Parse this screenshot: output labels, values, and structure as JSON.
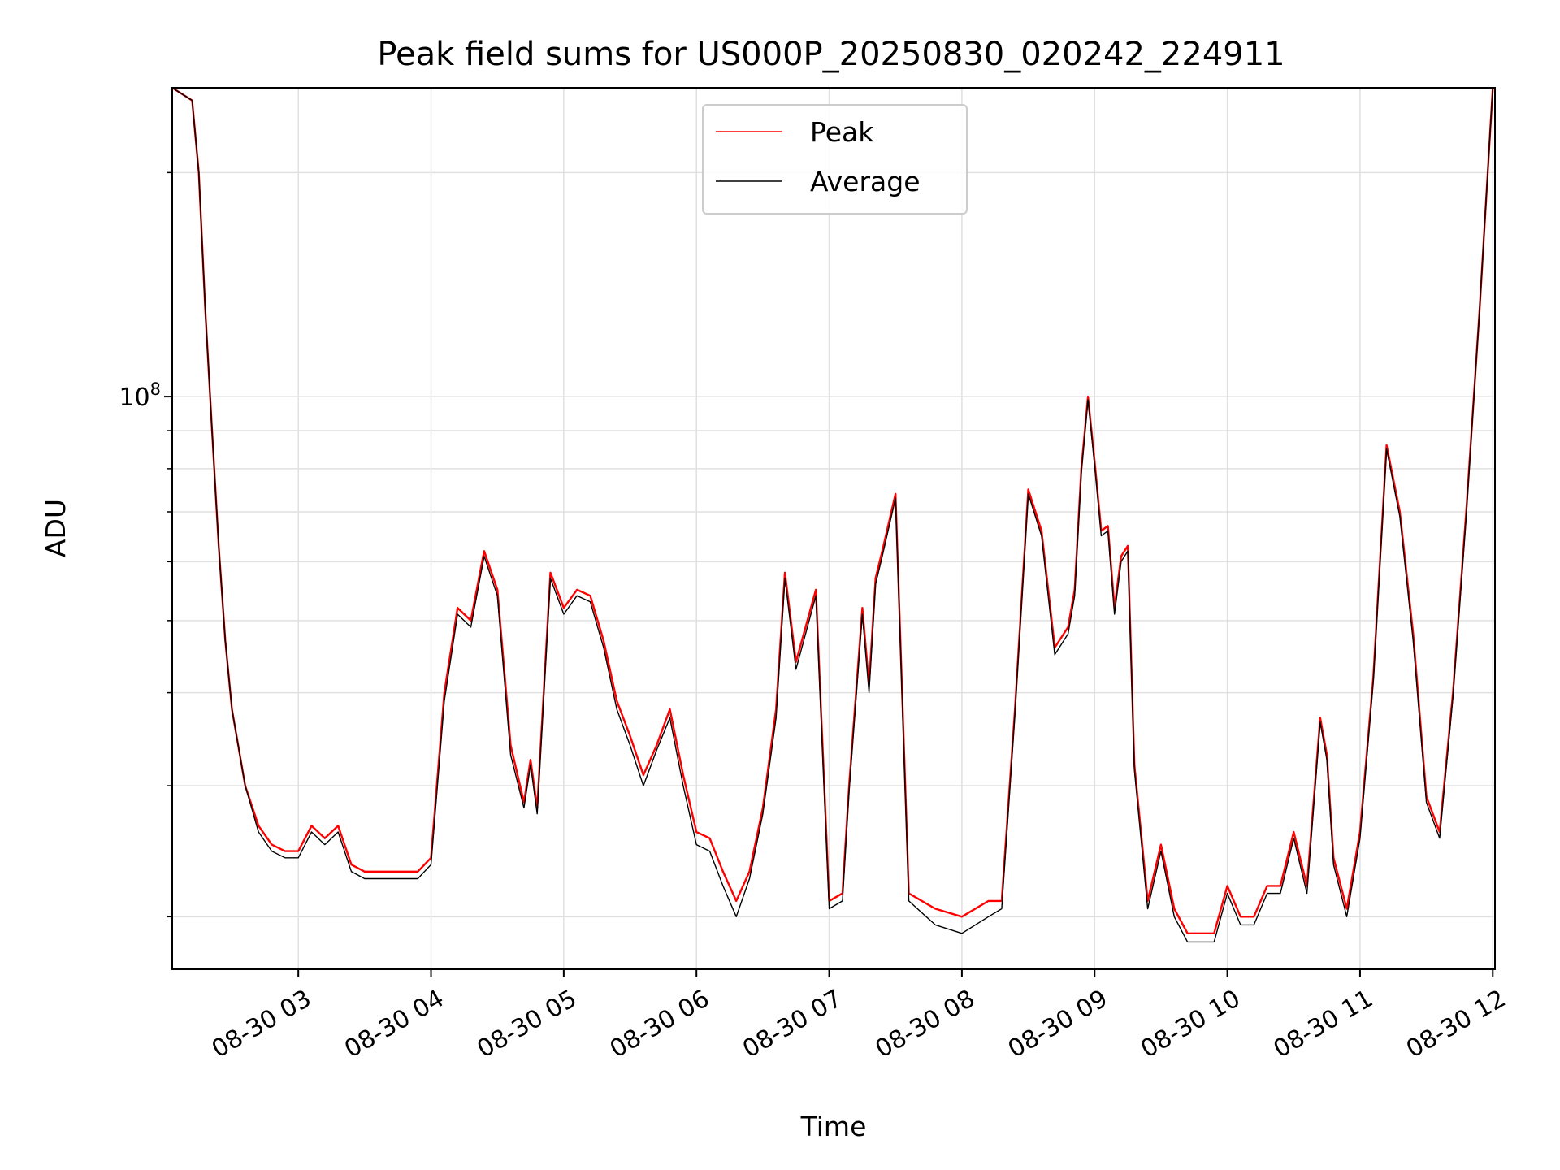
{
  "chart_data": {
    "type": "line",
    "title": "Peak field sums for US000P_20250830_020242_224911",
    "xlabel": "Time",
    "ylabel": "ADU",
    "yscale": "log",
    "grid": true,
    "legend_position": "upper center",
    "xlim": [
      "2025-08-30 02:03",
      "2025-08-30 12:01"
    ],
    "ylim": [
      17000000,
      260000000
    ],
    "x_ticks": [
      "08-30 03",
      "08-30 04",
      "08-30 05",
      "08-30 06",
      "08-30 07",
      "08-30 08",
      "08-30 09",
      "08-30 10",
      "08-30 11",
      "08-30 12"
    ],
    "x_tick_values": [
      "2025-08-30 03:00",
      "2025-08-30 04:00",
      "2025-08-30 05:00",
      "2025-08-30 06:00",
      "2025-08-30 07:00",
      "2025-08-30 08:00",
      "2025-08-30 09:00",
      "2025-08-30 10:00",
      "2025-08-30 11:00",
      "2025-08-30 12:00"
    ],
    "y_tick_label": {
      "mantissa": "10",
      "exponent": "8",
      "value": 100000000
    },
    "y_minor_ticks": [
      20000000,
      30000000,
      40000000,
      50000000,
      60000000,
      70000000,
      80000000,
      90000000,
      200000000
    ],
    "series": [
      {
        "name": "Peak",
        "color": "#ff0000",
        "x": [
          "2025-08-30 02:03",
          "2025-08-30 02:12",
          "2025-08-30 02:15",
          "2025-08-30 02:18",
          "2025-08-30 02:21",
          "2025-08-30 02:24",
          "2025-08-30 02:27",
          "2025-08-30 02:30",
          "2025-08-30 02:36",
          "2025-08-30 02:42",
          "2025-08-30 02:48",
          "2025-08-30 02:54",
          "2025-08-30 03:00",
          "2025-08-30 03:06",
          "2025-08-30 03:12",
          "2025-08-30 03:18",
          "2025-08-30 03:24",
          "2025-08-30 03:30",
          "2025-08-30 03:42",
          "2025-08-30 03:54",
          "2025-08-30 04:00",
          "2025-08-30 04:06",
          "2025-08-30 04:12",
          "2025-08-30 04:18",
          "2025-08-30 04:24",
          "2025-08-30 04:30",
          "2025-08-30 04:36",
          "2025-08-30 04:42",
          "2025-08-30 04:45",
          "2025-08-30 04:48",
          "2025-08-30 04:54",
          "2025-08-30 05:00",
          "2025-08-30 05:06",
          "2025-08-30 05:12",
          "2025-08-30 05:18",
          "2025-08-30 05:24",
          "2025-08-30 05:30",
          "2025-08-30 05:36",
          "2025-08-30 05:42",
          "2025-08-30 05:48",
          "2025-08-30 05:54",
          "2025-08-30 06:00",
          "2025-08-30 06:06",
          "2025-08-30 06:12",
          "2025-08-30 06:18",
          "2025-08-30 06:24",
          "2025-08-30 06:30",
          "2025-08-30 06:36",
          "2025-08-30 06:40",
          "2025-08-30 06:45",
          "2025-08-30 06:54",
          "2025-08-30 07:00",
          "2025-08-30 07:06",
          "2025-08-30 07:09",
          "2025-08-30 07:15",
          "2025-08-30 07:18",
          "2025-08-30 07:21",
          "2025-08-30 07:24",
          "2025-08-30 07:30",
          "2025-08-30 07:36",
          "2025-08-30 07:48",
          "2025-08-30 08:00",
          "2025-08-30 08:12",
          "2025-08-30 08:18",
          "2025-08-30 08:24",
          "2025-08-30 08:30",
          "2025-08-30 08:36",
          "2025-08-30 08:42",
          "2025-08-30 08:48",
          "2025-08-30 08:51",
          "2025-08-30 08:54",
          "2025-08-30 08:57",
          "2025-08-30 09:00",
          "2025-08-30 09:03",
          "2025-08-30 09:06",
          "2025-08-30 09:09",
          "2025-08-30 09:12",
          "2025-08-30 09:15",
          "2025-08-30 09:18",
          "2025-08-30 09:24",
          "2025-08-30 09:30",
          "2025-08-30 09:36",
          "2025-08-30 09:42",
          "2025-08-30 09:48",
          "2025-08-30 09:54",
          "2025-08-30 10:00",
          "2025-08-30 10:06",
          "2025-08-30 10:12",
          "2025-08-30 10:18",
          "2025-08-30 10:24",
          "2025-08-30 10:30",
          "2025-08-30 10:36",
          "2025-08-30 10:42",
          "2025-08-30 10:45",
          "2025-08-30 10:48",
          "2025-08-30 10:54",
          "2025-08-30 11:00",
          "2025-08-30 11:06",
          "2025-08-30 11:12",
          "2025-08-30 11:18",
          "2025-08-30 11:24",
          "2025-08-30 11:30",
          "2025-08-30 11:36",
          "2025-08-30 11:42",
          "2025-08-30 11:48",
          "2025-08-30 11:54",
          "2025-08-30 12:00",
          "2025-08-30 12:01"
        ],
        "y": [
          260000000,
          250000000,
          200000000,
          130000000,
          90000000,
          63000000,
          47000000,
          38000000,
          30000000,
          26500000,
          25000000,
          24500000,
          24500000,
          26500000,
          25500000,
          26500000,
          23500000,
          23000000,
          23000000,
          23000000,
          24000000,
          40000000,
          52000000,
          50000000,
          62000000,
          55000000,
          34000000,
          28500000,
          32500000,
          28000000,
          58000000,
          52000000,
          55000000,
          54000000,
          47000000,
          39000000,
          35000000,
          31000000,
          34000000,
          38000000,
          31000000,
          26000000,
          25500000,
          23000000,
          21000000,
          23000000,
          28000000,
          38000000,
          58000000,
          44000000,
          55000000,
          21000000,
          21500000,
          30000000,
          52000000,
          41000000,
          57000000,
          62000000,
          74000000,
          21500000,
          20500000,
          20000000,
          21000000,
          21000000,
          38000000,
          75000000,
          66000000,
          46000000,
          49000000,
          55000000,
          80000000,
          100000000,
          82000000,
          66000000,
          67000000,
          52000000,
          61000000,
          63000000,
          32000000,
          21000000,
          25000000,
          20500000,
          19000000,
          19000000,
          19000000,
          22000000,
          20000000,
          20000000,
          22000000,
          22000000,
          26000000,
          22000000,
          37000000,
          33000000,
          24000000,
          20500000,
          26000000,
          42000000,
          86000000,
          70000000,
          48000000,
          29000000,
          26000000,
          40000000,
          70000000,
          130000000,
          260000000,
          260000000
        ]
      },
      {
        "name": "Average",
        "color": "#000000",
        "x": [
          "2025-08-30 02:03",
          "2025-08-30 02:12",
          "2025-08-30 02:15",
          "2025-08-30 02:18",
          "2025-08-30 02:21",
          "2025-08-30 02:24",
          "2025-08-30 02:27",
          "2025-08-30 02:30",
          "2025-08-30 02:36",
          "2025-08-30 02:42",
          "2025-08-30 02:48",
          "2025-08-30 02:54",
          "2025-08-30 03:00",
          "2025-08-30 03:06",
          "2025-08-30 03:12",
          "2025-08-30 03:18",
          "2025-08-30 03:24",
          "2025-08-30 03:30",
          "2025-08-30 03:42",
          "2025-08-30 03:54",
          "2025-08-30 04:00",
          "2025-08-30 04:06",
          "2025-08-30 04:12",
          "2025-08-30 04:18",
          "2025-08-30 04:24",
          "2025-08-30 04:30",
          "2025-08-30 04:36",
          "2025-08-30 04:42",
          "2025-08-30 04:45",
          "2025-08-30 04:48",
          "2025-08-30 04:54",
          "2025-08-30 05:00",
          "2025-08-30 05:06",
          "2025-08-30 05:12",
          "2025-08-30 05:18",
          "2025-08-30 05:24",
          "2025-08-30 05:30",
          "2025-08-30 05:36",
          "2025-08-30 05:42",
          "2025-08-30 05:48",
          "2025-08-30 05:54",
          "2025-08-30 06:00",
          "2025-08-30 06:06",
          "2025-08-30 06:12",
          "2025-08-30 06:18",
          "2025-08-30 06:24",
          "2025-08-30 06:30",
          "2025-08-30 06:36",
          "2025-08-30 06:40",
          "2025-08-30 06:45",
          "2025-08-30 06:54",
          "2025-08-30 07:00",
          "2025-08-30 07:06",
          "2025-08-30 07:09",
          "2025-08-30 07:15",
          "2025-08-30 07:18",
          "2025-08-30 07:21",
          "2025-08-30 07:24",
          "2025-08-30 07:30",
          "2025-08-30 07:36",
          "2025-08-30 07:48",
          "2025-08-30 08:00",
          "2025-08-30 08:12",
          "2025-08-30 08:18",
          "2025-08-30 08:24",
          "2025-08-30 08:30",
          "2025-08-30 08:36",
          "2025-08-30 08:42",
          "2025-08-30 08:48",
          "2025-08-30 08:51",
          "2025-08-30 08:54",
          "2025-08-30 08:57",
          "2025-08-30 09:00",
          "2025-08-30 09:03",
          "2025-08-30 09:06",
          "2025-08-30 09:09",
          "2025-08-30 09:12",
          "2025-08-30 09:15",
          "2025-08-30 09:18",
          "2025-08-30 09:24",
          "2025-08-30 09:30",
          "2025-08-30 09:36",
          "2025-08-30 09:42",
          "2025-08-30 09:48",
          "2025-08-30 09:54",
          "2025-08-30 10:00",
          "2025-08-30 10:06",
          "2025-08-30 10:12",
          "2025-08-30 10:18",
          "2025-08-30 10:24",
          "2025-08-30 10:30",
          "2025-08-30 10:36",
          "2025-08-30 10:42",
          "2025-08-30 10:45",
          "2025-08-30 10:48",
          "2025-08-30 10:54",
          "2025-08-30 11:00",
          "2025-08-30 11:06",
          "2025-08-30 11:12",
          "2025-08-30 11:18",
          "2025-08-30 11:24",
          "2025-08-30 11:30",
          "2025-08-30 11:36",
          "2025-08-30 11:42",
          "2025-08-30 11:48",
          "2025-08-30 11:54",
          "2025-08-30 12:00",
          "2025-08-30 12:01"
        ],
        "y": [
          260000000,
          250000000,
          200000000,
          130000000,
          90000000,
          63000000,
          47000000,
          38000000,
          30000000,
          26000000,
          24500000,
          24000000,
          24000000,
          26000000,
          25000000,
          26000000,
          23000000,
          22500000,
          22500000,
          22500000,
          23500000,
          39000000,
          51000000,
          49000000,
          61000000,
          54000000,
          33000000,
          28000000,
          32000000,
          27500000,
          57000000,
          51000000,
          54000000,
          53000000,
          46000000,
          38000000,
          34000000,
          30000000,
          33500000,
          37000000,
          30000000,
          25000000,
          24500000,
          22000000,
          20000000,
          22500000,
          27500000,
          37000000,
          57000000,
          43000000,
          54000000,
          20500000,
          21000000,
          29500000,
          51000000,
          40000000,
          56000000,
          61000000,
          73000000,
          21000000,
          19500000,
          19000000,
          20000000,
          20500000,
          37500000,
          74000000,
          65000000,
          45000000,
          48000000,
          54000000,
          79000000,
          99000000,
          81000000,
          65000000,
          66000000,
          51000000,
          60000000,
          62000000,
          31500000,
          20500000,
          24500000,
          20000000,
          18500000,
          18500000,
          18500000,
          21500000,
          19500000,
          19500000,
          21500000,
          21500000,
          25500000,
          21500000,
          36500000,
          32500000,
          23500000,
          20000000,
          25500000,
          41500000,
          85000000,
          69000000,
          47000000,
          28500000,
          25500000,
          39500000,
          69000000,
          130000000,
          260000000,
          260000000
        ]
      }
    ]
  }
}
